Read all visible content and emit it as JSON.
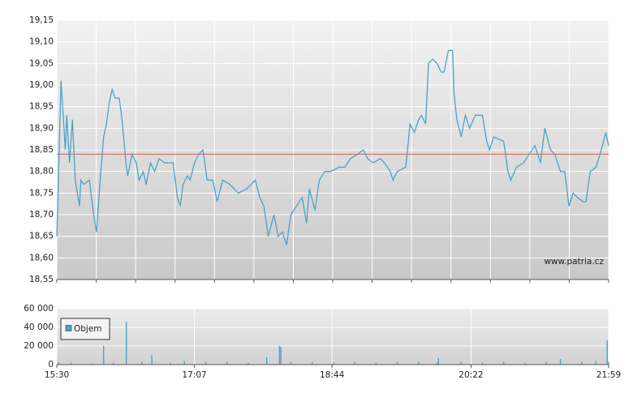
{
  "chart_data": [
    {
      "type": "line",
      "color": "#4aa3c8",
      "x": [
        "15:30",
        "15:31",
        "15:33",
        "15:36",
        "15:37",
        "15:39",
        "15:41",
        "15:43",
        "15:45",
        "15:46",
        "15:47",
        "15:49",
        "15:53",
        "15:56",
        "15:58",
        "16:01",
        "16:03",
        "16:05",
        "16:07",
        "16:09",
        "16:11",
        "16:14",
        "16:16",
        "16:19",
        "16:20",
        "16:23",
        "16:26",
        "16:28",
        "16:31",
        "16:33",
        "16:36",
        "16:39",
        "16:42",
        "16:46",
        "16:52",
        "16:55",
        "16:57",
        "16:59",
        "17:02",
        "17:04",
        "17:07",
        "17:10",
        "17:13",
        "17:16",
        "17:20",
        "17:23",
        "17:27",
        "17:32",
        "17:38",
        "17:44",
        "17:50",
        "17:53",
        "17:56",
        "17:59",
        "18:03",
        "18:06",
        "18:09",
        "18:12",
        "18:15",
        "18:19",
        "18:23",
        "18:26",
        "18:28",
        "18:32",
        "18:35",
        "18:39",
        "18:43",
        "18:49",
        "18:53",
        "18:57",
        "19:02",
        "19:06",
        "19:09",
        "19:13",
        "19:18",
        "19:21",
        "19:25",
        "19:27",
        "19:30",
        "19:36",
        "19:39",
        "19:42",
        "19:45",
        "19:47",
        "19:50",
        "19:52",
        "19:55",
        "19:58",
        "20:01",
        "20:03",
        "20:06",
        "20:09",
        "20:10",
        "20:12",
        "20:15",
        "20:18",
        "20:21",
        "20:25",
        "20:30",
        "20:33",
        "20:35",
        "20:38",
        "20:45",
        "20:48",
        "20:50",
        "20:54",
        "20:59",
        "21:03",
        "21:07",
        "21:11",
        "21:14",
        "21:18",
        "21:21",
        "21:25",
        "21:28",
        "21:31",
        "21:34",
        "21:37",
        "21:41",
        "21:43",
        "21:46",
        "21:50",
        "21:53",
        "21:57",
        "21:59"
      ],
      "values": [
        18.65,
        18.76,
        19.01,
        18.85,
        18.93,
        18.82,
        18.92,
        18.78,
        18.74,
        18.72,
        18.78,
        18.77,
        18.78,
        18.7,
        18.66,
        18.8,
        18.88,
        18.91,
        18.96,
        18.99,
        18.97,
        18.97,
        18.92,
        18.81,
        18.79,
        18.84,
        18.82,
        18.78,
        18.8,
        18.77,
        18.82,
        18.8,
        18.83,
        18.82,
        18.82,
        18.74,
        18.72,
        18.77,
        18.79,
        18.78,
        18.82,
        18.84,
        18.85,
        18.78,
        18.78,
        18.73,
        18.78,
        18.77,
        18.75,
        18.76,
        18.78,
        18.74,
        18.72,
        18.65,
        18.7,
        18.65,
        18.66,
        18.63,
        18.7,
        18.72,
        18.74,
        18.68,
        18.76,
        18.71,
        18.78,
        18.8,
        18.8,
        18.81,
        18.81,
        18.83,
        18.84,
        18.85,
        18.83,
        18.82,
        18.83,
        18.82,
        18.8,
        18.78,
        18.8,
        18.81,
        18.91,
        18.89,
        18.92,
        18.93,
        18.91,
        19.05,
        19.06,
        19.05,
        19.03,
        19.03,
        19.08,
        19.08,
        18.98,
        18.92,
        18.88,
        18.93,
        18.9,
        18.93,
        18.93,
        18.87,
        18.85,
        18.88,
        18.87,
        18.8,
        18.78,
        18.81,
        18.82,
        18.84,
        18.86,
        18.82,
        18.9,
        18.85,
        18.84,
        18.8,
        18.8,
        18.72,
        18.75,
        18.74,
        18.73,
        18.73,
        18.8,
        18.81,
        18.84,
        18.89,
        18.86
      ],
      "reference_line": {
        "value": 18.84,
        "color": "#e06666"
      },
      "xlim": [
        "15:30",
        "21:59"
      ],
      "ylim": [
        18.55,
        19.15
      ],
      "yticks": [
        {
          "value": 18.55,
          "label": "18,55"
        },
        {
          "value": 18.6,
          "label": "18,60"
        },
        {
          "value": 18.65,
          "label": "18,65"
        },
        {
          "value": 18.7,
          "label": "18,70"
        },
        {
          "value": 18.75,
          "label": "18,75"
        },
        {
          "value": 18.8,
          "label": "18,80"
        },
        {
          "value": 18.85,
          "label": "18,85"
        },
        {
          "value": 18.9,
          "label": "18,90"
        },
        {
          "value": 18.95,
          "label": "18,95"
        },
        {
          "value": 19.0,
          "label": "19,00"
        },
        {
          "value": 19.05,
          "label": "19,05"
        },
        {
          "value": 19.1,
          "label": "19,10"
        },
        {
          "value": 19.15,
          "label": "19,15"
        }
      ],
      "grid": true,
      "watermark": "www.patria.cz"
    },
    {
      "type": "bar",
      "x": [
        "15:31",
        "15:40",
        "15:55",
        "16:03",
        "16:10",
        "16:19",
        "16:30",
        "16:37",
        "16:50",
        "17:00",
        "17:15",
        "17:30",
        "17:45",
        "17:58",
        "18:07",
        "18:08",
        "18:15",
        "18:30",
        "18:45",
        "19:00",
        "19:15",
        "19:30",
        "19:45",
        "19:58",
        "19:59",
        "20:15",
        "20:30",
        "20:45",
        "21:00",
        "21:15",
        "21:25",
        "21:40",
        "21:50",
        "21:58",
        "21:59"
      ],
      "series": [
        {
          "name": "Objem",
          "color": "#4aa3c8",
          "values": [
            3000,
            2000,
            1500,
            20000,
            2000,
            46000,
            3000,
            10000,
            2000,
            4000,
            2500,
            3000,
            2000,
            8000,
            20000,
            19000,
            3000,
            2500,
            2000,
            3000,
            2000,
            2500,
            3000,
            2000,
            7000,
            2500,
            2000,
            3000,
            2000,
            2500,
            6000,
            3000,
            4000,
            26000,
            3000
          ]
        }
      ],
      "xlim": [
        "15:30",
        "21:59"
      ],
      "xticks": [
        "15:30",
        "17:07",
        "18:44",
        "20:22",
        "21:59"
      ],
      "ylim": [
        0,
        60000
      ],
      "yticks": [
        0,
        {
          "value": 20000,
          "label": "20 000"
        },
        {
          "value": 40000,
          "label": "40 000"
        },
        {
          "value": 60000,
          "label": "60 000"
        }
      ],
      "grid": true,
      "legend": "upper left"
    }
  ]
}
